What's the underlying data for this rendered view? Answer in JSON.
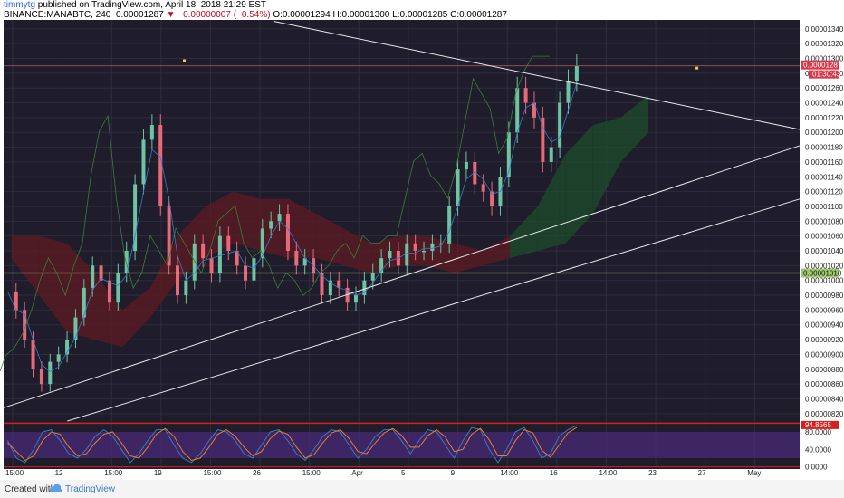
{
  "header": {
    "username": "timmytg",
    "published": "published on TradingView.com, April 18, 2018 21:29 EST",
    "symbol": "BINANCE:MANABTC, 240",
    "price": "0.00001287",
    "change": "−0.00000007 (−0.54%)",
    "open": "O:0.00001294",
    "high": "H:0.00001300",
    "low": "L:0.00001285",
    "close": "C:0.00001287"
  },
  "footer": {
    "created": "Created with",
    "brand": "TradingView"
  },
  "colors": {
    "background": "#1f1d2b",
    "grid": "#2f2d3c",
    "up": "#6ec3a3",
    "down": "#e86a7a",
    "stoch_band": "#4a2a78"
  },
  "chart_data": [
    {
      "type": "candlestick",
      "title": "",
      "y_ticks": [
        "0.00001340",
        "0.00001320",
        "0.00001300",
        "0.00001280",
        "0.00001260",
        "0.00001240",
        "0.00001220",
        "0.00001200",
        "0.00001180",
        "0.00001160",
        "0.00001140",
        "0.00001120",
        "0.00001100",
        "0.00001080",
        "0.00001060",
        "0.00001040",
        "0.00001020",
        "0.00001000",
        "0.00000980",
        "0.00000960",
        "0.00000940",
        "0.00000920",
        "0.00000900",
        "0.00000880",
        "0.00000860",
        "0.00000840",
        "0.00000820"
      ],
      "ylim": [
        8.1e-06,
        1.352e-05
      ],
      "x_ticks": [
        "15:00",
        "12",
        "15:00",
        "19",
        "15:00",
        "26",
        "15:00",
        "Apr",
        "5",
        "9",
        "14:00",
        "16",
        "14:00",
        "23",
        "27",
        "May"
      ],
      "price_labels": {
        "last": "0.00001287",
        "countdown": "01:30:43",
        "level": "0.00001010"
      },
      "horizontal_levels": [
        1.29e-05,
        1.01e-05
      ],
      "trendlines": [
        {
          "name": "upper",
          "from": [
            0.34,
            1.35e-05
          ],
          "to": [
            1.0,
            1.204e-05
          ]
        },
        {
          "name": "lower-1",
          "from": [
            0.0,
            8.28e-06
          ],
          "to": [
            1.0,
            1.182e-05
          ]
        },
        {
          "name": "lower-2",
          "from": [
            0.08,
            8.1e-06
          ],
          "to": [
            1.0,
            1.11e-05
          ]
        }
      ],
      "price_series": [
        9.85e-06,
        9.6e-06,
        9.2e-06,
        8.8e-06,
        8.6e-06,
        8.9e-06,
        9e-06,
        9.2e-06,
        9.5e-06,
        9.9e-06,
        1.02e-05,
        1e-05,
        9.7e-06,
        1.01e-05,
        1.04e-05,
        1.13e-05,
        1.19e-05,
        1.21e-05,
        1.1e-05,
        1.02e-05,
        9.8e-06,
        1e-05,
        1.05e-05,
        1.03e-05,
        1.01e-05,
        1.06e-05,
        1.04e-05,
        1.02e-05,
        1e-05,
        1.03e-05,
        1.07e-05,
        1.08e-05,
        1.09e-05,
        1.04e-05,
        1.02e-05,
        1.03e-05,
        1.01e-05,
        9.8e-06,
        1e-05,
        9.9e-06,
        9.7e-06,
        9.8e-06,
        1e-05,
        1.01e-05,
        1.03e-05,
        1.04e-05,
        1.02e-05,
        1.05e-05,
        1.04e-05,
        1.04e-05,
        1.05e-05,
        1.05e-05,
        1.1e-05,
        1.15e-05,
        1.16e-05,
        1.13e-05,
        1.12e-05,
        1.1e-05,
        1.14e-05,
        1.2e-05,
        1.26e-05,
        1.24e-05,
        1.22e-05,
        1.16e-05,
        1.18e-05,
        1.24e-05,
        1.27e-05,
        1.29e-05
      ],
      "ichimoku_cloud": {
        "top": [
          1.06e-05,
          1.06e-05,
          1.05e-05,
          1.01e-05,
          9.6e-06,
          9.9e-06,
          1.06e-05,
          1.1e-05,
          1.12e-05,
          1.11e-05,
          1.11e-05,
          1.09e-05,
          1.07e-05,
          1.05e-05,
          1.06e-05,
          1.06e-05,
          1.05e-05,
          1.04e-05,
          1.06e-05,
          1.1e-05,
          1.17e-05,
          1.21e-05,
          1.22e-05,
          1.25e-05
        ],
        "bottom": [
          1.03e-05,
          9.8e-06,
          9.3e-06,
          9.2e-06,
          9.1e-06,
          9.5e-06,
          1e-05,
          1.03e-05,
          1.05e-05,
          1.04e-05,
          1.03e-05,
          1.03e-05,
          1.02e-05,
          1.01e-05,
          1.02e-05,
          1.02e-05,
          1.01e-05,
          1.02e-05,
          1.03e-05,
          1.04e-05,
          1.05e-05,
          1.09e-05,
          1.16e-05,
          1.2e-05
        ]
      },
      "markers": [
        {
          "x": 0.227,
          "y": 1.297e-05
        },
        {
          "x": 0.871,
          "y": 1.287e-05
        }
      ]
    },
    {
      "type": "line",
      "title": "",
      "y_ticks": [
        "80.0000",
        "40.0000",
        "0.0000"
      ],
      "ylim": [
        -5,
        105
      ],
      "label": "94.8565",
      "levels": [
        80,
        20
      ],
      "series": [
        {
          "values": [
            60,
            20,
            10,
            40,
            80,
            85,
            60,
            30,
            20,
            40,
            70,
            85,
            70,
            40,
            10,
            30,
            60,
            85,
            85,
            50,
            20,
            10,
            30,
            60,
            85,
            80,
            60,
            30,
            20,
            50,
            80,
            85,
            60,
            30,
            15,
            40,
            70,
            85,
            80,
            50,
            20,
            40,
            70,
            85,
            85,
            60,
            30,
            60,
            85,
            80,
            50,
            20,
            60,
            90,
            85,
            40,
            10,
            40,
            80,
            90,
            60,
            20,
            30,
            70,
            85,
            94.9
          ]
        },
        {
          "values": [
            55,
            35,
            15,
            25,
            60,
            80,
            75,
            45,
            25,
            30,
            55,
            75,
            80,
            55,
            25,
            20,
            45,
            75,
            88,
            70,
            35,
            15,
            20,
            45,
            75,
            85,
            70,
            45,
            25,
            35,
            65,
            82,
            75,
            45,
            20,
            28,
            55,
            78,
            85,
            65,
            35,
            30,
            55,
            78,
            88,
            72,
            45,
            45,
            72,
            85,
            68,
            35,
            40,
            75,
            88,
            62,
            25,
            25,
            60,
            85,
            78,
            38,
            22,
            50,
            78,
            90
          ]
        }
      ]
    }
  ]
}
